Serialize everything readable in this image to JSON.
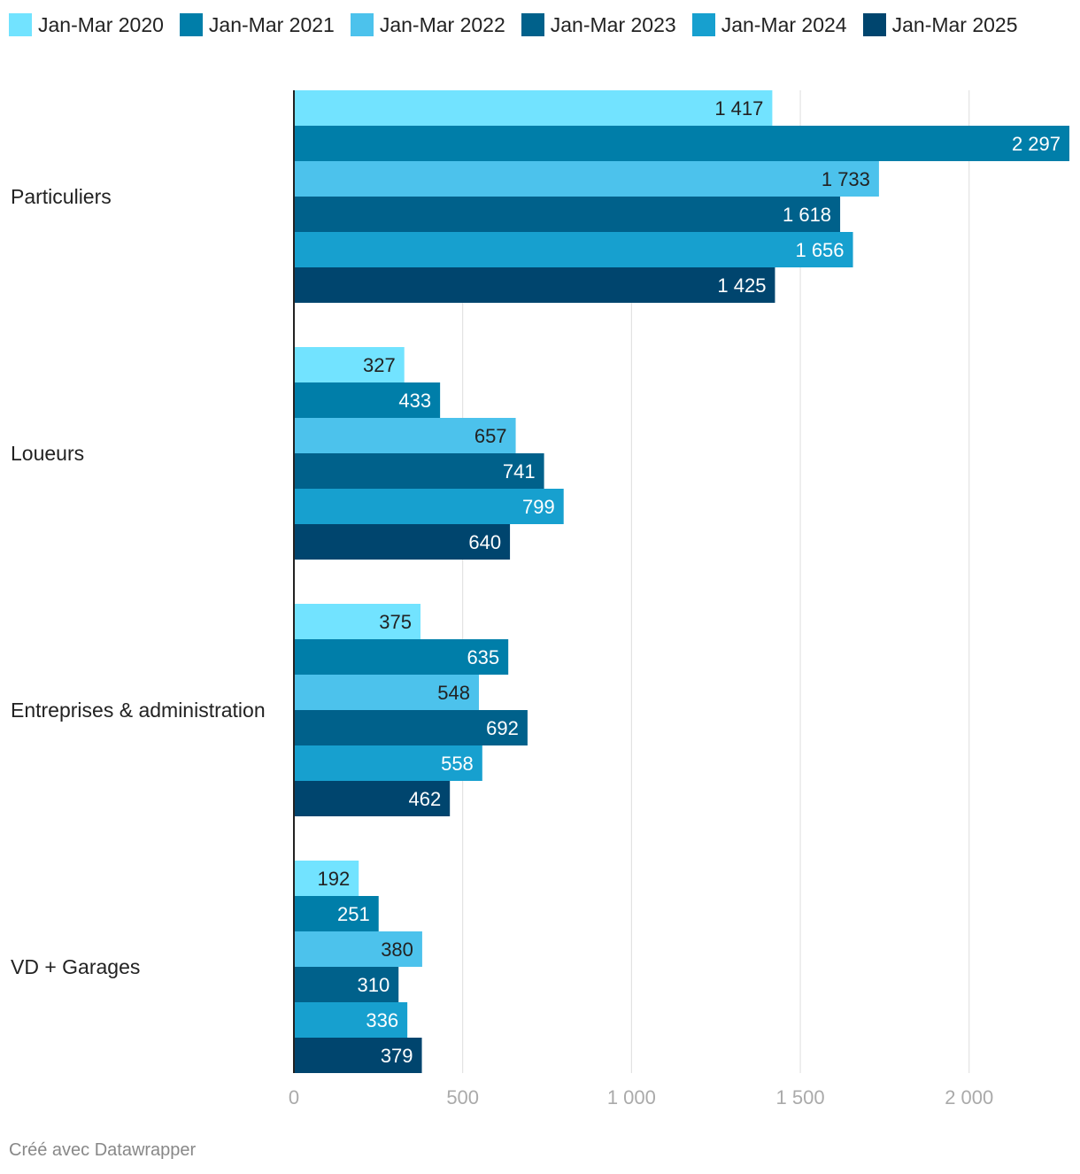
{
  "chart_data": {
    "type": "bar",
    "orientation": "horizontal",
    "categories": [
      "Particuliers",
      "Loueurs",
      "Entreprises & administration",
      "VD + Garages"
    ],
    "series": [
      {
        "name": "Jan-Mar 2020",
        "color": "#72e3ff",
        "values": [
          1417,
          327,
          375,
          192
        ],
        "labels": [
          "1 417",
          "327",
          "375",
          "192"
        ]
      },
      {
        "name": "Jan-Mar 2021",
        "color": "#007ea9",
        "values": [
          2297,
          433,
          635,
          251
        ],
        "labels": [
          "2 297",
          "433",
          "635",
          "251"
        ]
      },
      {
        "name": "Jan-Mar 2022",
        "color": "#4cc2ec",
        "values": [
          1733,
          657,
          548,
          380
        ],
        "labels": [
          "1 733",
          "657",
          "548",
          "380"
        ]
      },
      {
        "name": "Jan-Mar 2023",
        "color": "#00618b",
        "values": [
          1618,
          741,
          692,
          310
        ],
        "labels": [
          "1 618",
          "741",
          "692",
          "310"
        ]
      },
      {
        "name": "Jan-Mar 2024",
        "color": "#17a0cf",
        "values": [
          1656,
          799,
          558,
          336
        ],
        "labels": [
          "1 656",
          "799",
          "558",
          "336"
        ]
      },
      {
        "name": "Jan-Mar 2025",
        "color": "#00456e",
        "values": [
          1425,
          640,
          462,
          379
        ],
        "labels": [
          "1 425",
          "640",
          "462",
          "379"
        ]
      }
    ],
    "x_ticks": [
      0,
      500,
      1000,
      1500,
      2000
    ],
    "x_tick_labels": [
      "0",
      "500",
      "1 000",
      "1 500",
      "2 000"
    ],
    "xlim": [
      0,
      2297
    ],
    "grid": true,
    "legend_position": "top"
  },
  "footer": {
    "credit": "Créé avec Datawrapper"
  }
}
